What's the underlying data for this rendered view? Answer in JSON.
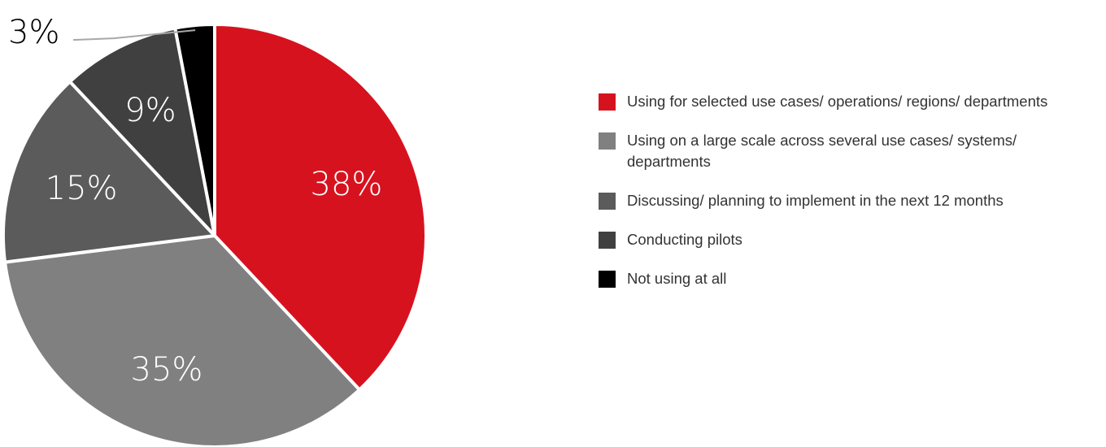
{
  "chart_data": {
    "type": "pie",
    "title": "",
    "legend_position": "right",
    "slices": [
      {
        "label": "Using for selected use cases/ operations/ regions/ departments",
        "value": 38,
        "display": "38%",
        "color": "#d7121f",
        "text_color": "#ffffff"
      },
      {
        "label": "Using on a large scale across several use cases/ systems/ departments",
        "value": 35,
        "display": "35%",
        "color": "#808080",
        "text_color": "#ffffff"
      },
      {
        "label": "Discussing/ planning to implement in the next 12 months",
        "value": 15,
        "display": "15%",
        "color": "#5b5b5b",
        "text_color": "#ffffff"
      },
      {
        "label": "Conducting pilots",
        "value": 9,
        "display": "9%",
        "color": "#404040",
        "text_color": "#ffffff"
      },
      {
        "label": "Not using at all",
        "value": 3,
        "display": "3%",
        "color": "#000000",
        "text_color": "#000000"
      }
    ]
  }
}
